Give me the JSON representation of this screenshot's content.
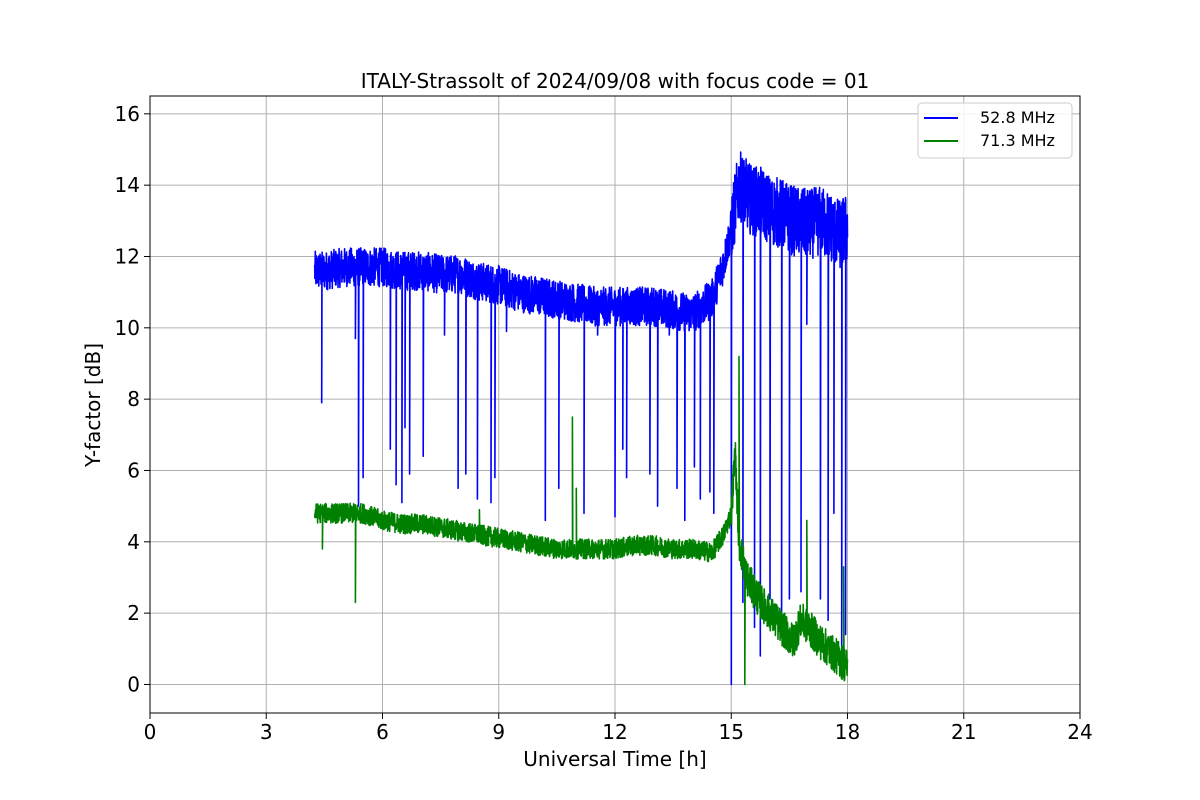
{
  "chart_data": {
    "type": "line",
    "title": "ITALY-Strassolt of 2024/09/08 with focus code = 01",
    "xlabel": "Universal Time [h]",
    "ylabel": "Y-factor [dB]",
    "xlim": [
      0,
      24
    ],
    "ylim": [
      -0.8,
      16.5
    ],
    "xticks": [
      0,
      3,
      6,
      9,
      12,
      15,
      18,
      21,
      24
    ],
    "yticks": [
      0,
      2,
      4,
      6,
      8,
      10,
      12,
      14,
      16
    ],
    "grid": true,
    "legend_position": "top-right",
    "series": [
      {
        "name": "52.8 MHz",
        "color": "#0000ff",
        "x": [
          4.25,
          4.5,
          5.0,
          5.5,
          6.0,
          6.5,
          7.0,
          7.5,
          8.0,
          8.5,
          9.0,
          9.5,
          10.0,
          10.5,
          11.0,
          11.5,
          12.0,
          12.5,
          13.0,
          13.5,
          14.0,
          14.5,
          14.8,
          15.0,
          15.2,
          15.5,
          15.8,
          16.0,
          16.3,
          16.6,
          17.0,
          17.3,
          17.6,
          17.8,
          18.0
        ],
        "y": [
          11.6,
          11.6,
          11.7,
          11.7,
          11.7,
          11.6,
          11.6,
          11.5,
          11.5,
          11.3,
          11.2,
          11.0,
          10.9,
          10.8,
          10.7,
          10.6,
          10.6,
          10.6,
          10.6,
          10.5,
          10.4,
          10.8,
          11.8,
          12.8,
          14.0,
          13.6,
          13.5,
          13.3,
          13.2,
          13.0,
          12.9,
          13.0,
          12.8,
          12.6,
          12.8
        ],
        "dips": [
          [
            4.43,
            7.9
          ],
          [
            5.3,
            9.7
          ],
          [
            5.38,
            5.0
          ],
          [
            5.5,
            5.8
          ],
          [
            6.2,
            6.6
          ],
          [
            6.35,
            5.6
          ],
          [
            6.5,
            5.1
          ],
          [
            6.58,
            7.2
          ],
          [
            6.7,
            5.9
          ],
          [
            7.05,
            6.4
          ],
          [
            7.6,
            9.8
          ],
          [
            7.95,
            5.5
          ],
          [
            8.15,
            5.9
          ],
          [
            8.45,
            5.2
          ],
          [
            8.8,
            5.1
          ],
          [
            8.9,
            5.8
          ],
          [
            9.2,
            9.9
          ],
          [
            10.2,
            4.6
          ],
          [
            10.55,
            5.5
          ],
          [
            11.2,
            4.8
          ],
          [
            11.55,
            9.8
          ],
          [
            12.0,
            4.7
          ],
          [
            12.2,
            6.6
          ],
          [
            12.3,
            5.8
          ],
          [
            12.9,
            5.9
          ],
          [
            13.1,
            5.0
          ],
          [
            13.4,
            9.8
          ],
          [
            13.6,
            5.5
          ],
          [
            13.8,
            4.6
          ],
          [
            14.05,
            6.1
          ],
          [
            14.2,
            5.2
          ],
          [
            14.45,
            5.4
          ],
          [
            14.55,
            4.8
          ],
          [
            15.0,
            0.0
          ],
          [
            15.3,
            2.3
          ],
          [
            15.6,
            1.6
          ],
          [
            15.75,
            0.8
          ],
          [
            16.0,
            2.4
          ],
          [
            16.3,
            2.0
          ],
          [
            16.5,
            2.4
          ],
          [
            16.8,
            2.6
          ],
          [
            16.95,
            10.1
          ],
          [
            17.3,
            2.4
          ],
          [
            17.5,
            1.8
          ],
          [
            17.65,
            4.8
          ],
          [
            17.85,
            0.9
          ],
          [
            17.95,
            1.4
          ]
        ]
      },
      {
        "name": "71.3 MHz",
        "color": "#008000",
        "x": [
          4.25,
          4.5,
          5.0,
          5.5,
          6.0,
          6.5,
          7.0,
          7.5,
          8.0,
          8.5,
          9.0,
          9.5,
          10.0,
          10.5,
          11.0,
          11.5,
          12.0,
          12.5,
          13.0,
          13.5,
          14.0,
          14.5,
          14.8,
          15.0,
          15.1,
          15.2,
          15.4,
          15.7,
          16.0,
          16.3,
          16.6,
          16.8,
          17.0,
          17.3,
          17.6,
          17.8,
          18.0
        ],
        "y": [
          4.8,
          4.8,
          4.8,
          4.8,
          4.6,
          4.5,
          4.5,
          4.4,
          4.3,
          4.2,
          4.1,
          4.0,
          3.9,
          3.8,
          3.8,
          3.8,
          3.8,
          3.9,
          3.9,
          3.8,
          3.8,
          3.7,
          4.2,
          4.8,
          6.5,
          4.0,
          3.0,
          2.4,
          2.0,
          1.6,
          1.2,
          1.8,
          1.6,
          1.2,
          0.9,
          0.7,
          0.5
        ],
        "spikes": [
          [
            5.3,
            2.3
          ],
          [
            4.45,
            3.8
          ],
          [
            10.9,
            7.5
          ],
          [
            15.2,
            9.2
          ],
          [
            15.35,
            0.0
          ],
          [
            16.95,
            4.6
          ],
          [
            8.5,
            4.9
          ],
          [
            11.0,
            5.5
          ],
          [
            17.9,
            3.3
          ]
        ]
      }
    ]
  }
}
